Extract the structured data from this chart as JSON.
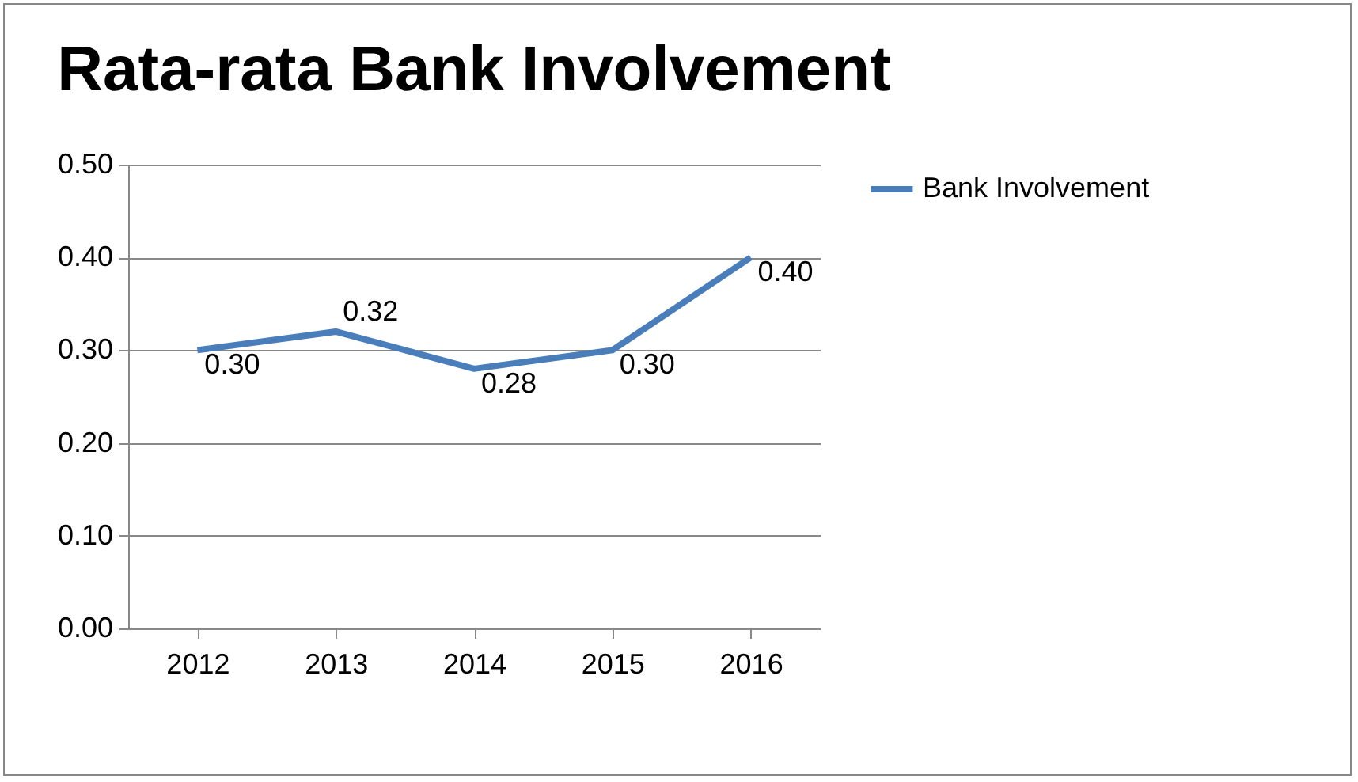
{
  "chart_data": {
    "type": "line",
    "title": "Rata-rata Bank Involvement",
    "categories": [
      "2012",
      "2013",
      "2014",
      "2015",
      "2016"
    ],
    "series": [
      {
        "name": "Bank Involvement",
        "color": "#4a7ebb",
        "values": [
          0.3,
          0.32,
          0.28,
          0.3,
          0.4
        ],
        "value_labels": [
          "0.30",
          "0.32",
          "0.28",
          "0.30",
          "0.40"
        ]
      }
    ],
    "ylim": [
      0,
      0.5
    ],
    "yticks": [
      {
        "value": 0,
        "label": "0.00"
      },
      {
        "value": 0.1,
        "label": "0.10"
      },
      {
        "value": 0.2,
        "label": "0.20"
      },
      {
        "value": 0.3,
        "label": "0.30"
      },
      {
        "value": 0.4,
        "label": "0.40"
      },
      {
        "value": 0.5,
        "label": "0.50"
      }
    ],
    "grid": "y",
    "legend": "right",
    "marker": "none",
    "line_style": "solid"
  }
}
